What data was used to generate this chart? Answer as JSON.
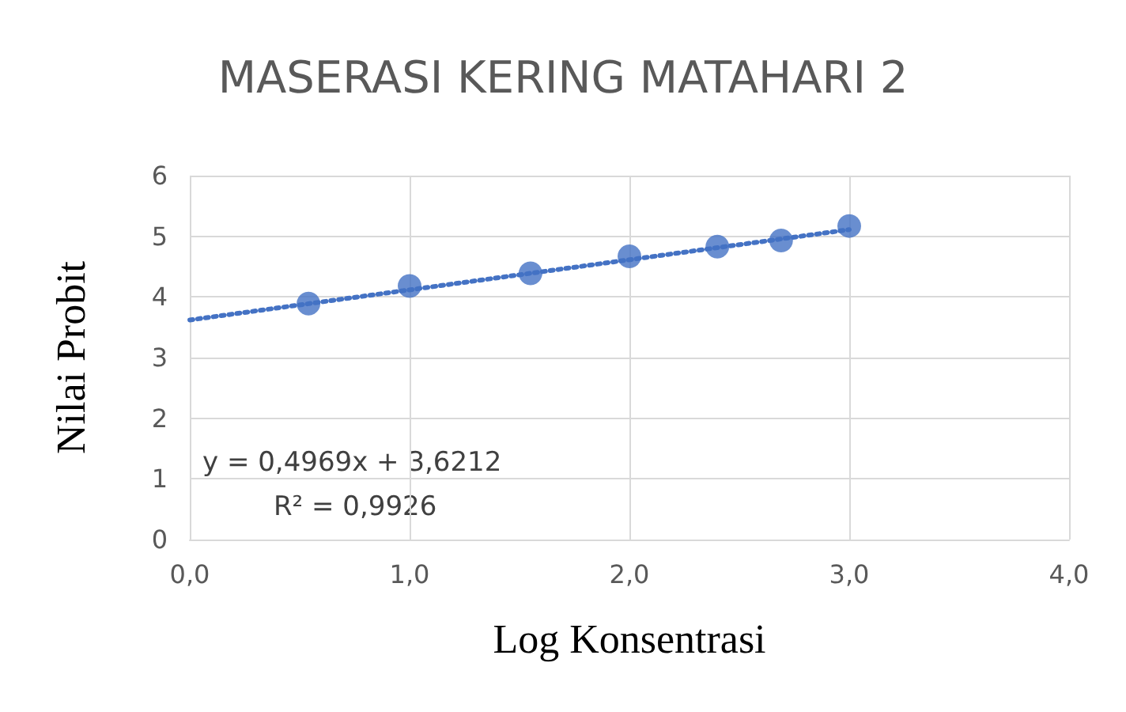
{
  "chart_data": {
    "type": "scatter",
    "title": "MASERASI KERING MATAHARI 2",
    "xlabel": "Log Konsentrasi",
    "ylabel": "Nilai Probit",
    "annotations": [
      "y = 0,4969x + 3,6212",
      "R² = 0,9926"
    ],
    "series": [
      {
        "color": "#4472c4",
        "marker": "circle",
        "x": [
          0.54,
          1.0,
          1.55,
          2.0,
          2.4,
          2.69,
          3.0
        ],
        "values": [
          3.89,
          4.18,
          4.39,
          4.67,
          4.83,
          4.93,
          5.17
        ]
      },
      {
        "type": "line",
        "color": "#4472c4",
        "marker": "none",
        "line_style": "dotted",
        "x": [
          0,
          3.0
        ],
        "values": [
          3.62,
          5.11
        ]
      }
    ],
    "xlim": [
      0,
      4
    ],
    "xticks": [
      {
        "value": 0,
        "label": "0,0"
      },
      {
        "value": 1,
        "label": "1,0"
      },
      {
        "value": 2,
        "label": "2,0"
      },
      {
        "value": 3,
        "label": "3,0"
      },
      {
        "value": 4,
        "label": "4,0"
      }
    ],
    "ylim": [
      0,
      6
    ],
    "yticks": [
      0,
      1,
      2,
      3,
      4,
      5,
      6
    ],
    "grid": true
  }
}
